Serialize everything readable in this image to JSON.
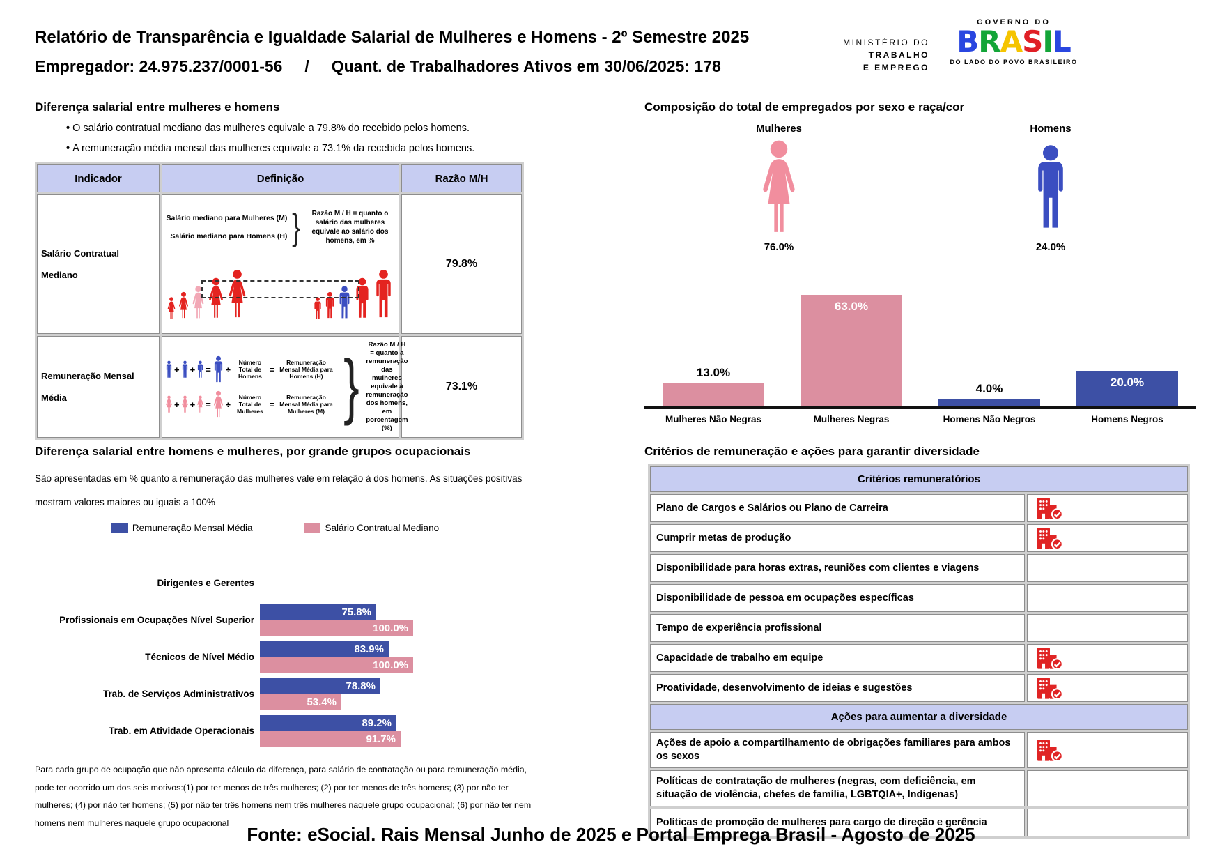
{
  "header": {
    "title_line1": "Relatório de Transparência e Igualdade Salarial de Mulheres e Homens - 2º Semestre 2025",
    "title_line2": "Empregador: 24.975.237/0001-56     /     Quant. de Trabalhadores Ativos em 30/06/2025: 178",
    "ministry": [
      "MINISTÉRIO DO",
      "TRABALHO",
      "E EMPREGO"
    ],
    "gov": {
      "top": "GOVERNO DO",
      "brand": "BRASIL",
      "brand_colors": [
        "#2946e0",
        "#13a538",
        "#f5c400",
        "#e01f26",
        "#13a538",
        "#2946e0"
      ],
      "tagline": "DO LADO DO POVO BRASILEIRO"
    }
  },
  "salary_diff": {
    "title": "Diferença salarial entre mulheres e homens",
    "bullets": [
      "O salário contratual mediano das mulheres equivale a 79.8% do recebido pelos homens.",
      "A remuneração média mensal das mulheres equivale a 73.1% da recebida pelos homens."
    ],
    "table": {
      "headers": [
        "Indicador",
        "Definição",
        "Razão M/H"
      ],
      "row_median": {
        "indicator": "Salário Contratual Mediano",
        "def_line_women": "Salário mediano para Mulheres (M)",
        "def_line_men": "Salário mediano para Homens (H)",
        "note": "Razão M / H = quanto o salário das mulheres equivale ao salário dos homens, em %",
        "ratio": "79.8%"
      },
      "row_mean": {
        "indicator": "Remuneração Mensal Média",
        "men_total": "Número Total de Homens",
        "men_result": "Remuneração Mensal Média para Homens (H)",
        "women_total": "Número Total de Mulheres",
        "women_result": "Remuneração Mensal Média para Mulheres (M)",
        "note": "Razão M / H = quanto a remuneração das mulheres equivale à remuneração dos homens, em porcentagem (%)",
        "ratio": "73.1%"
      }
    }
  },
  "composition": {
    "title": "Composição do total de empregados por sexo e raça/cor",
    "groups": [
      {
        "label": "Mulheres",
        "pct": "76.0%"
      },
      {
        "label": "Homens",
        "pct": "24.0%"
      }
    ]
  },
  "occupation": {
    "title": "Diferença salarial entre homens e mulheres, por grande grupos ocupacionais",
    "subtitle": "São apresentadas em % quanto a remuneração das mulheres vale em relação à dos homens. As situações positivas mostram valores maiores ou iguais a 100%",
    "footnote": "Para cada grupo de ocupação que não apresenta cálculo da diferença, para salário de contratação ou para remuneração média, pode ter ocorrido um dos seis motivos:(1) por ter menos de três mulheres; (2) por ter menos de três homens; (3) por não ter mulheres; (4) por não ter homens; (5) por não ter três homens nem três mulheres naquele grupo ocupacional; (6) por não ter nem homens nem mulheres naquele grupo ocupacional"
  },
  "criteria": {
    "title": "Critérios de remuneração e ações para garantir diversidade",
    "sections": [
      {
        "header": "Critérios remuneratórios",
        "rows": [
          {
            "label": "Plano de Cargos e Salários ou Plano de Carreira",
            "checked": true
          },
          {
            "label": "Cumprir metas de produção",
            "checked": true
          },
          {
            "label": "Disponibilidade para horas extras, reuniões com clientes e viagens",
            "checked": false
          },
          {
            "label": "Disponibilidade de pessoa em ocupações específicas",
            "checked": false
          },
          {
            "label": "Tempo de experiência profissional",
            "checked": false
          },
          {
            "label": "Capacidade de trabalho em equipe",
            "checked": true
          },
          {
            "label": "Proatividade, desenvolvimento de ideias e sugestões",
            "checked": true
          }
        ]
      },
      {
        "header": "Ações para aumentar a diversidade",
        "rows": [
          {
            "label": "Ações de apoio a compartilhamento de obrigações familiares para ambos os sexos",
            "checked": true
          },
          {
            "label": "Políticas de contratação de mulheres (negras, com deficiência, em situação de violência, chefes de família, LGBTQIA+, Indígenas)",
            "checked": false
          },
          {
            "label": "Políticas de promoção de mulheres para cargo de direção e gerência",
            "checked": false
          }
        ]
      }
    ]
  },
  "chart_data": [
    {
      "type": "bar",
      "title": "Composição do total de empregados por sexo e raça/cor",
      "categories": [
        "Mulheres Não Negras",
        "Mulheres Negras",
        "Homens Não Negros",
        "Homens Negros"
      ],
      "values": [
        13.0,
        63.0,
        4.0,
        20.0
      ],
      "bar_colors": [
        "#dc8fa0",
        "#dc8fa0",
        "#3d50a5",
        "#3d50a5"
      ],
      "value_label_inside": [
        false,
        true,
        false,
        true
      ],
      "ylim": [
        0,
        65
      ],
      "grid": false
    },
    {
      "type": "bar-horizontal-grouped",
      "title": "Diferença salarial entre homens e mulheres, por grande grupos ocupacionais",
      "categories": [
        "Dirigentes e Gerentes",
        "Profissionais em Ocupações Nível Superior",
        "Técnicos de Nível Médio",
        "Trab. de Serviços Administrativos",
        "Trab. em Atividade Operacionais"
      ],
      "series": [
        {
          "name": "Remuneração Mensal Média",
          "color": "#3d50a5",
          "values": [
            null,
            75.8,
            83.9,
            78.8,
            89.2
          ]
        },
        {
          "name": "Salário Contratual Mediano",
          "color": "#dc8fa0",
          "values": [
            null,
            100.0,
            100.0,
            53.4,
            91.7
          ]
        }
      ],
      "xlim": [
        0,
        100
      ],
      "legend_position": "top",
      "grid": false
    }
  ],
  "colors": {
    "pink": "#dc8fa0",
    "blue": "#3d50a5",
    "icon_pink": "#f18e9e",
    "icon_blue": "#3b4ec1",
    "fig_red": "#e42320",
    "fig_pink": "#f2a8b6",
    "lavender": "#c7cdf2",
    "check_red": "#e02424"
  },
  "footer": {
    "source": "Fonte: eSocial. Rais Mensal Junho de 2025 e Portal Emprega Brasil - Agosto de 2025"
  }
}
